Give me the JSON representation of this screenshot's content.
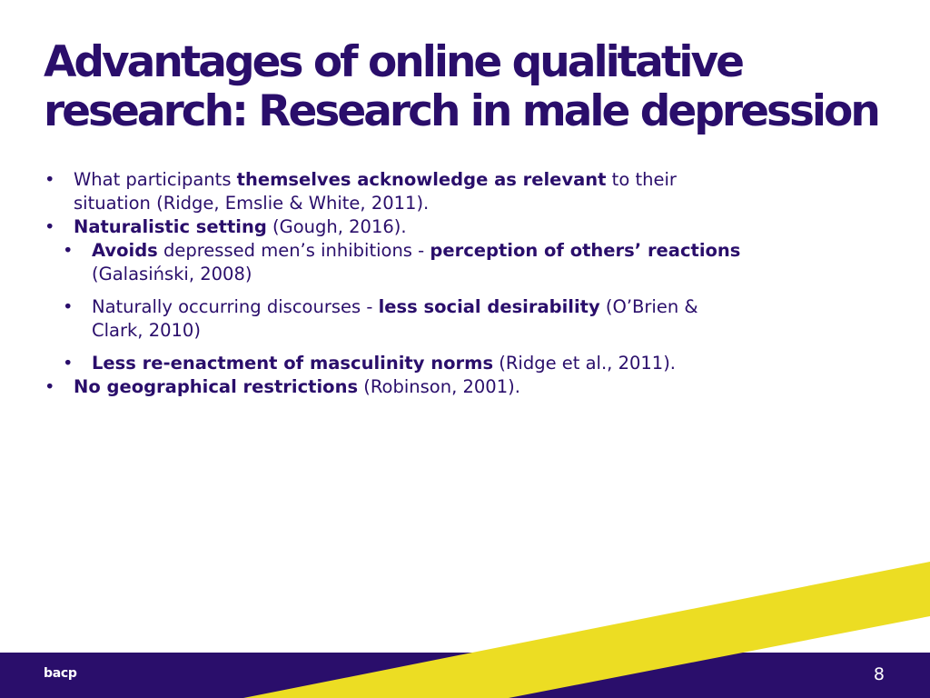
{
  "slide": {
    "title_line1": "Advantages of online qualitative",
    "title_line2": "research: Research in male depression",
    "bullets": [
      {
        "pre": "What participants ",
        "bold": "themselves acknowledge as relevant",
        "post": " to their situation (Ridge, Emslie & White, 2011)."
      },
      {
        "pre": "",
        "bold": "Naturalistic setting",
        "post": " (Gough, 2016)."
      },
      {
        "pre": "",
        "bold": "Avoids",
        "mid": " depressed men’s inhibitions - ",
        "bold2": "perception of others’ reactions",
        "post": " (Galasiński, 2008)"
      },
      {
        "pre": "Naturally occurring discourses - ",
        "bold": "less social desirability",
        "post": " (O’Brien & Clark, 2010)"
      },
      {
        "pre": "",
        "bold": "Less re-enactment of masculinity norms",
        "post": " (Ridge et al., 2011)."
      },
      {
        "pre": "",
        "bold": "No geographical restrictions",
        "post": " (Robinson, 2001)."
      }
    ]
  },
  "footer": {
    "logo_text": "bacp",
    "page_number": "8"
  },
  "colors": {
    "brand_purple": "#2a0e6b",
    "accent_yellow": "#ecdd23"
  }
}
